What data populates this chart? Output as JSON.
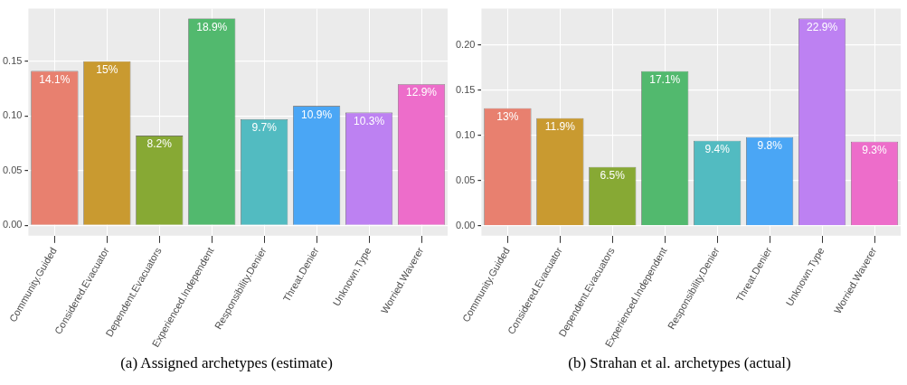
{
  "chart_data": [
    {
      "type": "bar",
      "categories": [
        "Community.Guided",
        "Considered.Evacuator",
        "Dependent.Evacuators",
        "Experienced.Independent",
        "Responsibility.Denier",
        "Threat.Denier",
        "Unknown.Type",
        "Worried.Waverer"
      ],
      "values": [
        0.141,
        0.15,
        0.082,
        0.189,
        0.097,
        0.109,
        0.103,
        0.129
      ],
      "value_labels": [
        "14.1%",
        "15%",
        "8.2%",
        "18.9%",
        "9.7%",
        "10.9%",
        "10.3%",
        "12.9%"
      ],
      "colors": [
        "#e8806f",
        "#c99a30",
        "#87a934",
        "#52b96e",
        "#52bbc1",
        "#4aa6f5",
        "#bd81f2",
        "#ed6dca"
      ],
      "ylim": [
        -0.0095,
        0.198
      ],
      "yticks": [
        {
          "value": 0,
          "label": "0.00"
        },
        {
          "value": 0.05,
          "label": "0.05"
        },
        {
          "value": 0.1,
          "label": "0.10"
        },
        {
          "value": 0.15,
          "label": "0.15"
        }
      ],
      "grid": true,
      "legend": false,
      "annotations": [
        "(a) Assigned archetypes (estimate)"
      ]
    },
    {
      "type": "bar",
      "categories": [
        "Community.Guided",
        "Considered.Evacuator",
        "Dependent.Evacuators",
        "Experienced.Independent",
        "Responsibility.Denier",
        "Threat.Denier",
        "Unknown.Type",
        "Worried.Waverer"
      ],
      "values": [
        0.13,
        0.119,
        0.065,
        0.171,
        0.094,
        0.098,
        0.229,
        0.093
      ],
      "value_labels": [
        "13%",
        "11.9%",
        "6.5%",
        "17.1%",
        "9.4%",
        "9.8%",
        "22.9%",
        "9.3%"
      ],
      "colors": [
        "#e8806f",
        "#c99a30",
        "#87a934",
        "#52b96e",
        "#52bbc1",
        "#4aa6f5",
        "#bd81f2",
        "#ed6dca"
      ],
      "ylim": [
        -0.011,
        0.24
      ],
      "yticks": [
        {
          "value": 0,
          "label": "0.00"
        },
        {
          "value": 0.05,
          "label": "0.05"
        },
        {
          "value": 0.1,
          "label": "0.10"
        },
        {
          "value": 0.15,
          "label": "0.15"
        },
        {
          "value": 0.2,
          "label": "0.20"
        }
      ],
      "grid": true,
      "legend": false,
      "annotations": [
        "(b) Strahan et al. archetypes (actual)"
      ]
    }
  ]
}
